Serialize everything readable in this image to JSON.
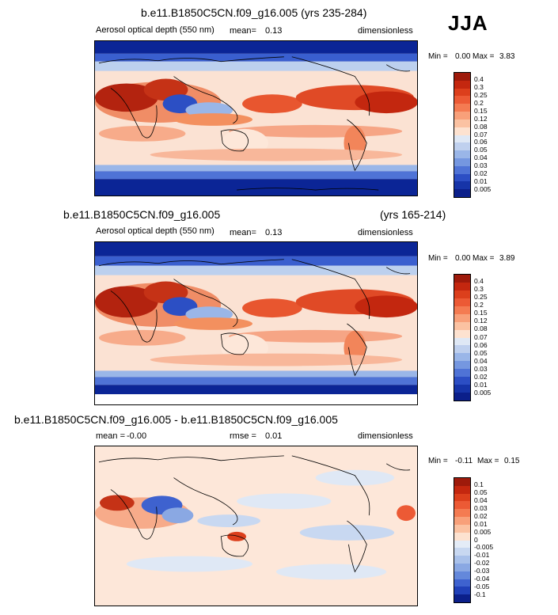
{
  "season": "JJA",
  "panels": [
    {
      "id": "top",
      "title": "b.e11.B1850C5CN.f09_g16.005 (yrs 235-284)",
      "title_right": "",
      "variable": "Aerosol optical depth (550 nm)",
      "stat_label": "mean=",
      "stat_value": "0.13",
      "units": "dimensionless",
      "min_label": "Min =",
      "min_value": "0.00",
      "max_label": "Max =",
      "max_value": "3.83",
      "colorbar": "abs"
    },
    {
      "id": "middle",
      "title": "b.e11.B1850C5CN.f09_g16.005",
      "title_right": "(yrs 165-214)",
      "variable": "Aerosol optical depth (550 nm)",
      "stat_label": "mean=",
      "stat_value": "0.13",
      "units": "dimensionless",
      "min_label": "Min =",
      "min_value": "0.00",
      "max_label": "Max =",
      "max_value": "3.89",
      "colorbar": "abs"
    },
    {
      "id": "bottom",
      "title": "b.e11.B1850C5CN.f09_g16.005 - b.e11.B1850C5CN.f09_g16.005",
      "title_right": "",
      "mean_label": "mean =",
      "mean_value": "-0.00",
      "stat_label": "rmse =",
      "stat_value": "0.01",
      "units": "dimensionless",
      "min_label": "Min =",
      "min_value": "-0.11",
      "max_label": "Max =",
      "max_value": "0.15",
      "colorbar": "diff"
    }
  ],
  "colorbars": {
    "abs": {
      "labels": [
        "0.4",
        "0.3",
        "0.25",
        "0.2",
        "0.15",
        "0.12",
        "0.08",
        "0.07",
        "0.06",
        "0.05",
        "0.04",
        "0.03",
        "0.02",
        "0.01",
        "0.005"
      ],
      "colors": [
        "#9e1a0b",
        "#c4270f",
        "#dc3f1c",
        "#ec5a35",
        "#f47b52",
        "#f8a07a",
        "#fbc2a2",
        "#fde2d0",
        "#dfe8f5",
        "#bfd0ee",
        "#9ab6e8",
        "#7597e0",
        "#4f73d6",
        "#2c4ec4",
        "#1634a8",
        "#0b1f8a"
      ]
    },
    "diff": {
      "labels": [
        "0.1",
        "0.05",
        "0.04",
        "0.03",
        "0.02",
        "0.01",
        "0.005",
        "0",
        "-0.005",
        "-0.01",
        "-0.02",
        "-0.03",
        "-0.04",
        "-0.05",
        "-0.1"
      ],
      "colors": [
        "#9e1a0b",
        "#c4270f",
        "#dc3f1c",
        "#ec5a35",
        "#f47b52",
        "#f8a07a",
        "#fbc2a2",
        "#fde2d0",
        "#e4ecf7",
        "#c8d8f1",
        "#a9c1ea",
        "#8aa8e3",
        "#6488db",
        "#3e62cf",
        "#2040b8",
        "#0b1f8a"
      ]
    }
  }
}
